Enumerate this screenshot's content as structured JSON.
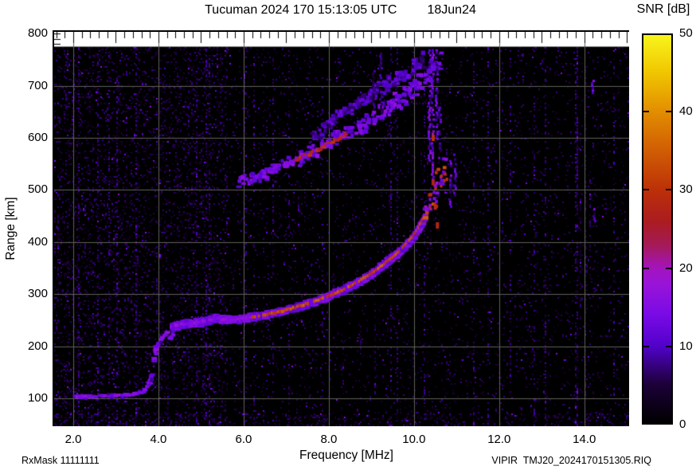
{
  "title": {
    "main": "Tucuman 2024 170 15:13:05 UTC",
    "date": "18Jun24"
  },
  "footer": {
    "left": "RxMask 11111111",
    "right": "VIPIR  TMJ20_2024170151305.RIQ"
  },
  "chart_data": {
    "type": "heatmap",
    "title": "Tucuman 2024 170 15:13:05 UTC 18Jun24",
    "xlabel": "Frequency [MHz]",
    "ylabel": "Range [km]",
    "colorbar_label": "SNR [dB]",
    "x_tick_labels": [
      "2.0",
      "4.0",
      "6.0",
      "8.0",
      "10.0",
      "12.0",
      "14.0"
    ],
    "x_tick_values": [
      2,
      4,
      6,
      8,
      10,
      12,
      14
    ],
    "y_tick_labels": [
      "100",
      "200",
      "300",
      "400",
      "500",
      "600",
      "700",
      "800"
    ],
    "y_tick_values": [
      100,
      200,
      300,
      400,
      500,
      600,
      700,
      800
    ],
    "y_minor_ticks": [
      800,
      790,
      780
    ],
    "colorbar_tick_labels": [
      "0",
      "10",
      "20",
      "30",
      "40",
      "50"
    ],
    "colorbar_tick_values": [
      0,
      10,
      20,
      30,
      40,
      50
    ],
    "x_range": [
      1.551,
      15.051
    ],
    "y_range": [
      46.6,
      803.4
    ],
    "snr_range": [
      0,
      50
    ],
    "grid": true,
    "grid_color": "#5f5f58",
    "background": "#000000",
    "data_top_km": 775,
    "palette_stops": [
      [
        0,
        "#000000"
      ],
      [
        5,
        "#1c0038"
      ],
      [
        10,
        "#5202cc"
      ],
      [
        14,
        "#7a0ae6"
      ],
      [
        18,
        "#9a14d8"
      ],
      [
        20,
        "#a414bc"
      ],
      [
        23,
        "#a51a56"
      ],
      [
        26,
        "#ab1c20"
      ],
      [
        30,
        "#bc3008"
      ],
      [
        35,
        "#d05c04"
      ],
      [
        40,
        "#e28c00"
      ],
      [
        45,
        "#f0c400"
      ],
      [
        50,
        "#f8f51c"
      ]
    ],
    "traces": [
      {
        "name": "E-layer echo",
        "style": "compact",
        "intensity": 14,
        "points": [
          [
            2.05,
            104
          ],
          [
            2.2,
            103
          ],
          [
            2.35,
            104
          ],
          [
            2.5,
            103
          ],
          [
            2.65,
            105
          ],
          [
            2.8,
            104
          ],
          [
            2.95,
            106
          ],
          [
            3.1,
            105
          ],
          [
            3.25,
            107
          ],
          [
            3.4,
            108
          ],
          [
            3.55,
            110
          ],
          [
            3.65,
            113
          ],
          [
            3.72,
            118
          ],
          [
            3.78,
            127
          ],
          [
            3.83,
            138
          ],
          [
            3.87,
            150
          ]
        ]
      },
      {
        "name": "E-F retardation cusp",
        "style": "compact",
        "intensity": 14,
        "points": [
          [
            3.9,
            172
          ],
          [
            3.93,
            186
          ],
          [
            3.96,
            198
          ],
          [
            4.0,
            206
          ],
          [
            4.06,
            213
          ],
          [
            4.13,
            220
          ],
          [
            4.2,
            228
          ],
          [
            4.3,
            233
          ],
          [
            4.37,
            228
          ],
          [
            4.31,
            218
          ],
          [
            4.25,
            211
          ]
        ]
      },
      {
        "name": "F-layer trace",
        "style": "ridge",
        "intensity": 16,
        "core_intensity": 32,
        "core_range": [
          6.2,
          10.35
        ],
        "points": [
          [
            4.35,
            237
          ],
          [
            4.5,
            241
          ],
          [
            4.65,
            243
          ],
          [
            4.8,
            244
          ],
          [
            5.0,
            246
          ],
          [
            5.15,
            249
          ],
          [
            5.3,
            252
          ],
          [
            5.45,
            253
          ],
          [
            5.6,
            251
          ],
          [
            5.75,
            250
          ],
          [
            5.9,
            252
          ],
          [
            6.1,
            254
          ],
          [
            6.3,
            257
          ],
          [
            6.5,
            260
          ],
          [
            6.7,
            263
          ],
          [
            6.9,
            267
          ],
          [
            7.1,
            271
          ],
          [
            7.3,
            276
          ],
          [
            7.5,
            281
          ],
          [
            7.7,
            286
          ],
          [
            7.9,
            292
          ],
          [
            8.1,
            299
          ],
          [
            8.3,
            306
          ],
          [
            8.5,
            314
          ],
          [
            8.7,
            323
          ],
          [
            8.9,
            333
          ],
          [
            9.1,
            344
          ],
          [
            9.3,
            356
          ],
          [
            9.5,
            369
          ],
          [
            9.7,
            383
          ],
          [
            9.85,
            396
          ],
          [
            10.0,
            410
          ],
          [
            10.1,
            422
          ],
          [
            10.2,
            436
          ],
          [
            10.3,
            452
          ]
        ]
      },
      {
        "name": "F-trace spread near foF2",
        "style": "scatter",
        "intensity": 16,
        "core_intensity": 30,
        "points": [
          [
            10.3,
            452
          ],
          [
            10.4,
            472
          ],
          [
            10.5,
            492
          ],
          [
            10.6,
            515
          ],
          [
            10.7,
            538
          ],
          [
            10.8,
            555
          ]
        ]
      },
      {
        "name": "Second-hop echo",
        "style": "diffuse",
        "intensity": 13,
        "core_intensity": 28,
        "core_range": [
          7.15,
          8.4
        ],
        "points": [
          [
            5.9,
            515
          ],
          [
            6.2,
            522
          ],
          [
            6.5,
            531
          ],
          [
            6.8,
            541
          ],
          [
            7.1,
            552
          ],
          [
            7.4,
            563
          ],
          [
            7.7,
            575
          ],
          [
            8.0,
            588
          ],
          [
            8.3,
            601
          ],
          [
            8.6,
            615
          ],
          [
            8.9,
            630
          ],
          [
            9.2,
            646
          ],
          [
            9.5,
            663
          ],
          [
            9.8,
            681
          ],
          [
            10.05,
            700
          ],
          [
            10.3,
            722
          ],
          [
            10.5,
            742
          ],
          [
            10.65,
            757
          ]
        ]
      },
      {
        "name": "Second-hop upper diffuse band",
        "style": "diffuse",
        "intensity": 9,
        "core_intensity": 0,
        "core_range": [
          0,
          0
        ],
        "points": [
          [
            7.6,
            600
          ],
          [
            8.2,
            640
          ],
          [
            8.8,
            672
          ],
          [
            9.4,
            706
          ],
          [
            10.0,
            737
          ],
          [
            10.3,
            752
          ]
        ]
      }
    ],
    "streaks": [
      {
        "f": 10.36,
        "r1": 555,
        "r2": 770,
        "intensity": 13
      },
      {
        "f": 10.44,
        "r1": 520,
        "r2": 775,
        "intensity": 15
      },
      {
        "f": 10.52,
        "r1": 600,
        "r2": 770,
        "intensity": 12
      },
      {
        "f": 10.6,
        "r1": 560,
        "r2": 660,
        "intensity": 10
      },
      {
        "f": 10.85,
        "r1": 470,
        "r2": 562,
        "intensity": 13
      },
      {
        "f": 10.95,
        "r1": 492,
        "r2": 570,
        "intensity": 12
      },
      {
        "f": 9.22,
        "r1": 640,
        "r2": 768,
        "intensity": 8
      },
      {
        "f": 9.05,
        "r1": 650,
        "r2": 730,
        "intensity": 7
      },
      {
        "f": 14.2,
        "r1": 685,
        "r2": 716,
        "intensity": 15
      },
      {
        "f": 14.22,
        "r1": 440,
        "r2": 470,
        "intensity": 11
      }
    ],
    "red_dashes": [
      {
        "f": 10.45,
        "r": 600,
        "v": 30
      },
      {
        "f": 10.45,
        "r": 515,
        "v": 27
      },
      {
        "f": 10.5,
        "r": 468,
        "v": 29
      },
      {
        "f": 10.55,
        "r": 432,
        "v": 28
      }
    ],
    "noise": {
      "seed": 12345,
      "base_density": 0.07,
      "left_density_bonus": 0.12,
      "left_max_mhz": 5.6,
      "hot_column_prob": 0.05,
      "bottom_band_bonus": 0.12
    }
  }
}
